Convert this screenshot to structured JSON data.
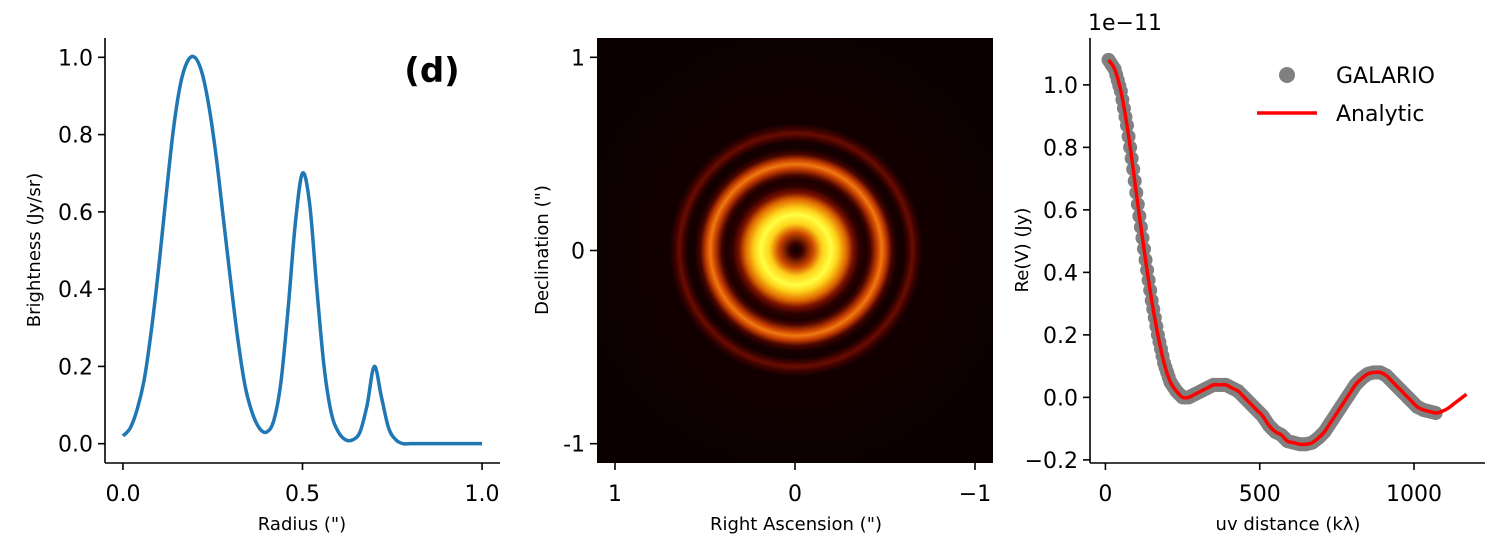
{
  "chart_data": [
    {
      "type": "line",
      "panel_letter": "(d)",
      "xlabel": "Radius (\")",
      "ylabel": "Brightness (Jy/sr)",
      "xlim": [
        -0.05,
        1.05
      ],
      "ylim": [
        -0.05,
        1.05
      ],
      "xticks": [
        0.0,
        0.5,
        1.0
      ],
      "xtick_labels": [
        "0.0",
        "0.5",
        "1.0"
      ],
      "yticks": [
        0.0,
        0.2,
        0.4,
        0.6,
        0.8,
        1.0
      ],
      "ytick_labels": [
        "0.0",
        "0.2",
        "0.4",
        "0.6",
        "0.8",
        "1.0"
      ],
      "series": [
        {
          "color": "#1f77b4",
          "x": [
            0.0,
            0.02,
            0.04,
            0.06,
            0.08,
            0.1,
            0.12,
            0.14,
            0.16,
            0.18,
            0.2,
            0.22,
            0.24,
            0.26,
            0.28,
            0.3,
            0.32,
            0.34,
            0.36,
            0.38,
            0.4,
            0.42,
            0.44,
            0.46,
            0.48,
            0.5,
            0.52,
            0.54,
            0.56,
            0.58,
            0.6,
            0.62,
            0.64,
            0.66,
            0.68,
            0.7,
            0.72,
            0.74,
            0.76,
            0.78,
            0.8,
            0.85,
            0.9,
            0.95,
            1.0
          ],
          "y": [
            0.02,
            0.04,
            0.09,
            0.17,
            0.3,
            0.46,
            0.64,
            0.81,
            0.93,
            0.99,
            1.0,
            0.96,
            0.87,
            0.74,
            0.58,
            0.42,
            0.27,
            0.15,
            0.08,
            0.04,
            0.03,
            0.06,
            0.16,
            0.35,
            0.57,
            0.7,
            0.62,
            0.4,
            0.2,
            0.08,
            0.03,
            0.01,
            0.01,
            0.03,
            0.1,
            0.2,
            0.12,
            0.04,
            0.01,
            0.0,
            0.0,
            0.0,
            0.0,
            0.0,
            0.0
          ]
        }
      ]
    },
    {
      "type": "heatmap",
      "xlabel": "Right Ascension (\")",
      "ylabel": "Declination (\")",
      "xlim": [
        1.1,
        -1.1
      ],
      "ylim": [
        -1.1,
        1.1
      ],
      "xticks": [
        1,
        0,
        -1
      ],
      "xtick_labels": [
        "1",
        "0",
        "−1"
      ],
      "yticks": [
        1,
        0,
        -1
      ],
      "ytick_labels": [
        "1",
        "0",
        "-1"
      ],
      "colormap": "afmhot",
      "rings": [
        {
          "radius": 0.2,
          "intensity": 1.0
        },
        {
          "radius": 0.5,
          "intensity": 0.7
        },
        {
          "radius": 0.7,
          "intensity": 0.2
        }
      ]
    },
    {
      "type": "scatter",
      "offset_text": "1e−11",
      "xlabel": "uv distance (kλ)",
      "ylabel": "Re(V) (Jy)",
      "xlim": [
        -50,
        1230
      ],
      "ylim": [
        -0.21,
        1.15
      ],
      "xticks": [
        0,
        500,
        1000
      ],
      "xtick_labels": [
        "0",
        "500",
        "1000"
      ],
      "yticks": [
        -0.2,
        0.0,
        0.2,
        0.4,
        0.6,
        0.8,
        1.0
      ],
      "ytick_labels": [
        "−0.2",
        "0.0",
        "0.2",
        "0.4",
        "0.6",
        "0.8",
        "1.0"
      ],
      "legend_position": "top-right",
      "series": [
        {
          "name": "GALARIO",
          "kind": "scatter",
          "color": "#808080",
          "x": [
            10,
            30,
            50,
            70,
            90,
            110,
            130,
            150,
            170,
            190,
            210,
            230,
            250,
            270,
            290,
            310,
            330,
            350,
            370,
            390,
            410,
            430,
            450,
            470,
            490,
            510,
            530,
            550,
            570,
            590,
            610,
            630,
            650,
            670,
            690,
            710,
            730,
            750,
            770,
            790,
            810,
            830,
            850,
            870,
            890,
            910,
            930,
            950,
            970,
            990,
            1010,
            1030,
            1050,
            1070
          ],
          "y": [
            1.08,
            1.05,
            0.98,
            0.87,
            0.73,
            0.58,
            0.44,
            0.31,
            0.2,
            0.11,
            0.05,
            0.02,
            0.0,
            0.0,
            0.01,
            0.02,
            0.03,
            0.04,
            0.04,
            0.04,
            0.03,
            0.02,
            0.0,
            -0.02,
            -0.04,
            -0.06,
            -0.09,
            -0.11,
            -0.12,
            -0.14,
            -0.145,
            -0.15,
            -0.15,
            -0.145,
            -0.13,
            -0.11,
            -0.08,
            -0.05,
            -0.02,
            0.01,
            0.04,
            0.06,
            0.075,
            0.08,
            0.08,
            0.07,
            0.05,
            0.03,
            0.01,
            -0.01,
            -0.03,
            -0.04,
            -0.045,
            -0.05
          ]
        },
        {
          "name": "Analytic",
          "kind": "line",
          "color": "#ff0000",
          "x": [
            10,
            30,
            50,
            70,
            90,
            110,
            130,
            150,
            170,
            190,
            210,
            230,
            250,
            270,
            290,
            310,
            330,
            350,
            370,
            390,
            410,
            430,
            450,
            470,
            490,
            510,
            530,
            550,
            570,
            590,
            610,
            630,
            650,
            670,
            690,
            710,
            730,
            750,
            770,
            790,
            810,
            830,
            850,
            870,
            890,
            910,
            930,
            950,
            970,
            990,
            1010,
            1030,
            1050,
            1070,
            1090,
            1110,
            1130,
            1150,
            1170
          ],
          "y": [
            1.08,
            1.05,
            0.98,
            0.87,
            0.73,
            0.58,
            0.44,
            0.31,
            0.2,
            0.11,
            0.05,
            0.02,
            0.0,
            0.0,
            0.01,
            0.02,
            0.03,
            0.04,
            0.04,
            0.04,
            0.03,
            0.02,
            0.0,
            -0.02,
            -0.04,
            -0.06,
            -0.09,
            -0.11,
            -0.12,
            -0.14,
            -0.145,
            -0.15,
            -0.15,
            -0.145,
            -0.13,
            -0.11,
            -0.08,
            -0.05,
            -0.02,
            0.01,
            0.04,
            0.06,
            0.075,
            0.08,
            0.08,
            0.07,
            0.05,
            0.03,
            0.01,
            -0.01,
            -0.03,
            -0.04,
            -0.045,
            -0.05,
            -0.045,
            -0.035,
            -0.02,
            -0.005,
            0.01
          ]
        }
      ]
    }
  ]
}
